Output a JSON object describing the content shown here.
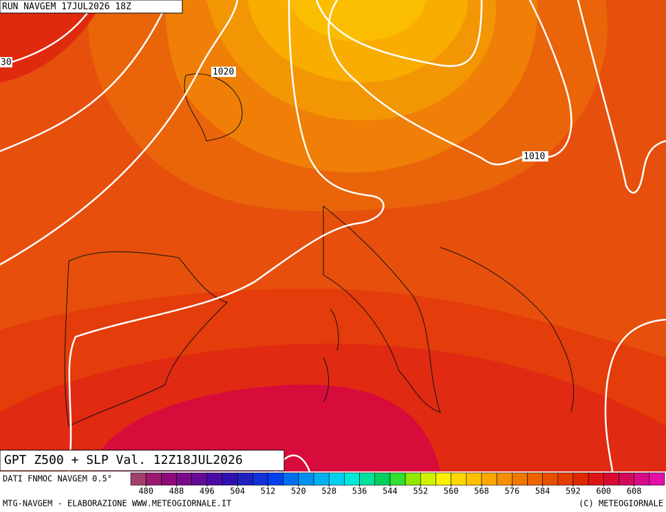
{
  "header": {
    "run": "RUN NAVGEM 17JUL2026 18Z"
  },
  "isobar_labels": [
    "30",
    "1020",
    "1010"
  ],
  "title": "GPT Z500 + SLP Val. 12Z18JUL2026",
  "source": "DATI FNMOC NAVGEM 0.5°",
  "colorbar": {
    "range": [
      476,
      616
    ],
    "ticks": [
      480,
      488,
      496,
      504,
      512,
      520,
      528,
      536,
      544,
      552,
      560,
      568,
      576,
      584,
      592,
      600,
      608
    ],
    "colors": [
      "#a0406a",
      "#9a1a6e",
      "#8e0a7a",
      "#7a0a8a",
      "#640a96",
      "#4a0aa6",
      "#3010b0",
      "#2020c0",
      "#1030d8",
      "#0040f0",
      "#0070f0",
      "#0090f0",
      "#00b0f0",
      "#00d0f0",
      "#00e8d8",
      "#00e0a0",
      "#00d060",
      "#30e030",
      "#90e800",
      "#d0f000",
      "#fff000",
      "#ffd800",
      "#ffc000",
      "#f8a800",
      "#f49000",
      "#f07800",
      "#ec6400",
      "#e85000",
      "#e43c00",
      "#e02800",
      "#dc1414",
      "#d80a32",
      "#d4085a",
      "#d80a8a",
      "#e010a8"
    ]
  },
  "footer": {
    "left": "MTG-NAVGEM - ELABORAZIONE WWW.METEOGIORNALE.IT",
    "right": "(C) METEOGIORNALE"
  }
}
